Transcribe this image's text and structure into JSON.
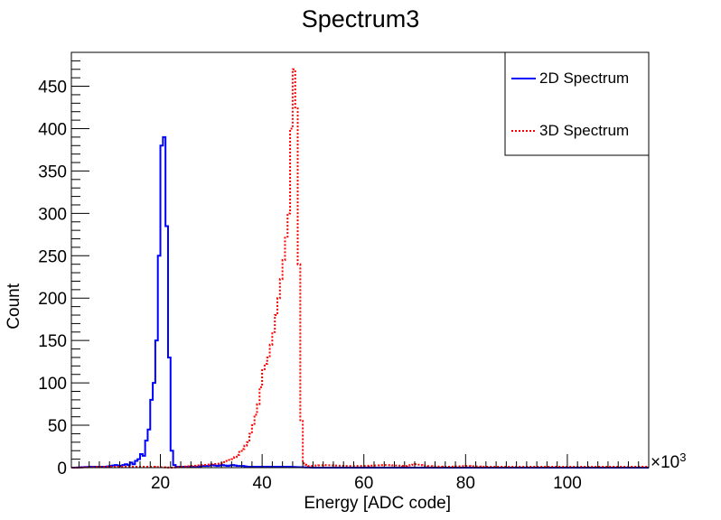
{
  "chart_data": {
    "type": "histogram",
    "title": "Spectrum3",
    "xlabel": "Energy [ADC code]",
    "ylabel": "Count",
    "x_exponent_label": "×10",
    "x_exponent_power": "3",
    "xlim": [
      2.5,
      116
    ],
    "ylim": [
      0,
      490
    ],
    "x_ticks": [
      "20",
      "40",
      "60",
      "80",
      "100"
    ],
    "y_ticks": [
      "0",
      "50",
      "100",
      "150",
      "200",
      "250",
      "300",
      "350",
      "400",
      "450"
    ],
    "grid": false,
    "legend_position": "top-right",
    "bin_width": 0.5,
    "series": [
      {
        "name": "2D Spectrum",
        "color": "#0000ff",
        "style": "solid",
        "points": [
          [
            3,
            0
          ],
          [
            6,
            1
          ],
          [
            9,
            1
          ],
          [
            10,
            2
          ],
          [
            11,
            3
          ],
          [
            12,
            2
          ],
          [
            13,
            4
          ],
          [
            13.5,
            3
          ],
          [
            14,
            6
          ],
          [
            14.5,
            4
          ],
          [
            15,
            8
          ],
          [
            15.5,
            10
          ],
          [
            16,
            16
          ],
          [
            16.5,
            14
          ],
          [
            17,
            32
          ],
          [
            17.5,
            45
          ],
          [
            18,
            80
          ],
          [
            18.5,
            100
          ],
          [
            19,
            150
          ],
          [
            19.5,
            250
          ],
          [
            20,
            380
          ],
          [
            20.5,
            390
          ],
          [
            21,
            285
          ],
          [
            21.5,
            130
          ],
          [
            22,
            20
          ],
          [
            22.5,
            3
          ],
          [
            23,
            1
          ],
          [
            27,
            1
          ],
          [
            28,
            2
          ],
          [
            29,
            2
          ],
          [
            30,
            3
          ],
          [
            31,
            2
          ],
          [
            32,
            3
          ],
          [
            33,
            2
          ],
          [
            34,
            3
          ],
          [
            35,
            2
          ],
          [
            36,
            2
          ],
          [
            37,
            1
          ],
          [
            38,
            1
          ],
          [
            39,
            1
          ],
          [
            40,
            1
          ],
          [
            45,
            1
          ],
          [
            50,
            0
          ]
        ]
      },
      {
        "name": "3D Spectrum",
        "color": "#ff0000",
        "style": "dotted",
        "points": [
          [
            3,
            0
          ],
          [
            8,
            1
          ],
          [
            14,
            1
          ],
          [
            18,
            1
          ],
          [
            22,
            0
          ],
          [
            26,
            2
          ],
          [
            28,
            3
          ],
          [
            30,
            4
          ],
          [
            32,
            5
          ],
          [
            33,
            8
          ],
          [
            34,
            10
          ],
          [
            35,
            15
          ],
          [
            36,
            22
          ],
          [
            37,
            30
          ],
          [
            38,
            50
          ],
          [
            39,
            75
          ],
          [
            40,
            115
          ],
          [
            41,
            130
          ],
          [
            42,
            160
          ],
          [
            43,
            200
          ],
          [
            44,
            245
          ],
          [
            45,
            300
          ],
          [
            45.5,
            400
          ],
          [
            46,
            470
          ],
          [
            46.5,
            425
          ],
          [
            47,
            240
          ],
          [
            47.5,
            55
          ],
          [
            48,
            5
          ],
          [
            49,
            2
          ],
          [
            52,
            3
          ],
          [
            56,
            2
          ],
          [
            60,
            2
          ],
          [
            64,
            3
          ],
          [
            68,
            2
          ],
          [
            70,
            4
          ],
          [
            72,
            2
          ],
          [
            76,
            1
          ],
          [
            80,
            2
          ],
          [
            84,
            1
          ],
          [
            88,
            1
          ],
          [
            92,
            1
          ],
          [
            100,
            1
          ],
          [
            108,
            1
          ],
          [
            115,
            1
          ]
        ]
      }
    ]
  }
}
